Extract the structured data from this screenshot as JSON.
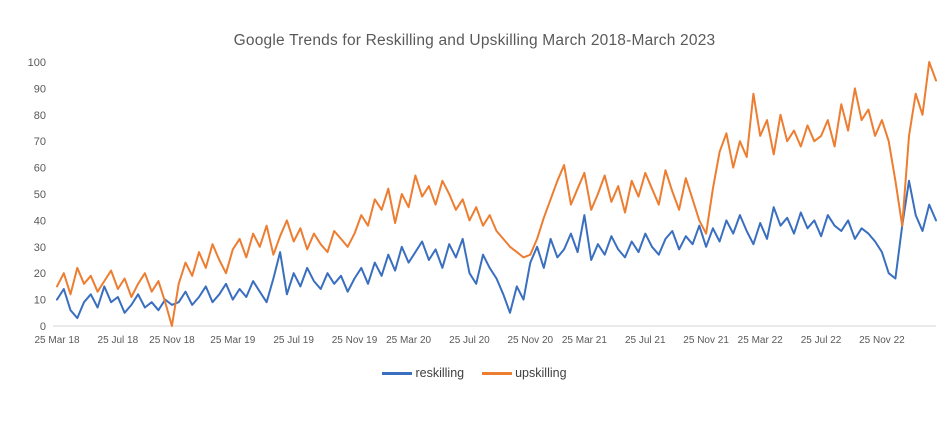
{
  "chart_data": {
    "type": "line",
    "title": "Google Trends for Reskilling and Upskilling March 2018-March 2023",
    "xlabel": "",
    "ylabel": "",
    "ylim": [
      0,
      100
    ],
    "y_step": 10,
    "grid": false,
    "legend_position": "bottom",
    "x_unit": "weekly interest index (Google Trends, 0-100)",
    "x_tick_labels": [
      "25 Mar 18",
      "25 Jul 18",
      "25 Nov 18",
      "25 Mar 19",
      "25 Jul 19",
      "25 Nov 19",
      "25 Mar 20",
      "25 Jul 20",
      "25 Nov 20",
      "25 Mar 21",
      "25 Jul 21",
      "25 Nov 21",
      "25 Mar 22",
      "25 Jul 22",
      "25 Nov 22"
    ],
    "x_tick_indices": [
      0,
      9,
      17,
      26,
      35,
      44,
      52,
      61,
      70,
      78,
      87,
      96,
      104,
      113,
      122
    ],
    "series": [
      {
        "name": "reskilling",
        "color": "#3A6FBF",
        "values": [
          10,
          14,
          6,
          3,
          9,
          12,
          7,
          15,
          9,
          11,
          5,
          8,
          12,
          7,
          9,
          6,
          10,
          8,
          9,
          13,
          8,
          11,
          15,
          9,
          12,
          16,
          10,
          14,
          11,
          17,
          13,
          9,
          18,
          28,
          12,
          20,
          15,
          22,
          17,
          14,
          20,
          16,
          19,
          13,
          18,
          22,
          16,
          24,
          19,
          27,
          21,
          30,
          24,
          28,
          32,
          25,
          29,
          22,
          31,
          26,
          33,
          20,
          16,
          27,
          22,
          18,
          12,
          5,
          15,
          10,
          24,
          30,
          22,
          33,
          26,
          29,
          35,
          28,
          42,
          25,
          31,
          27,
          34,
          29,
          26,
          32,
          28,
          35,
          30,
          27,
          33,
          36,
          29,
          34,
          31,
          38,
          30,
          37,
          32,
          40,
          35,
          42,
          36,
          31,
          39,
          33,
          45,
          38,
          41,
          35,
          43,
          37,
          40,
          34,
          42,
          38,
          36,
          40,
          33,
          37,
          35,
          32,
          28,
          20,
          18,
          38,
          55,
          42,
          36,
          46,
          40
        ]
      },
      {
        "name": "upskilling",
        "color": "#ED7D31",
        "values": [
          15,
          20,
          12,
          22,
          16,
          19,
          13,
          17,
          21,
          14,
          18,
          11,
          16,
          20,
          13,
          17,
          9,
          0,
          16,
          24,
          19,
          28,
          22,
          31,
          25,
          20,
          29,
          33,
          26,
          35,
          30,
          38,
          27,
          34,
          40,
          32,
          37,
          29,
          35,
          31,
          28,
          36,
          33,
          30,
          35,
          42,
          38,
          48,
          44,
          52,
          39,
          50,
          45,
          57,
          49,
          53,
          46,
          55,
          50,
          44,
          48,
          40,
          45,
          38,
          42,
          36,
          33,
          30,
          28,
          26,
          27,
          33,
          41,
          48,
          55,
          61,
          46,
          52,
          58,
          44,
          50,
          57,
          47,
          53,
          43,
          55,
          49,
          58,
          52,
          46,
          59,
          51,
          44,
          56,
          48,
          40,
          35,
          52,
          66,
          73,
          60,
          70,
          64,
          88,
          72,
          78,
          65,
          80,
          70,
          74,
          68,
          76,
          70,
          72,
          78,
          68,
          84,
          74,
          90,
          78,
          82,
          72,
          78,
          70,
          55,
          38,
          72,
          88,
          80,
          100,
          93
        ]
      }
    ]
  }
}
